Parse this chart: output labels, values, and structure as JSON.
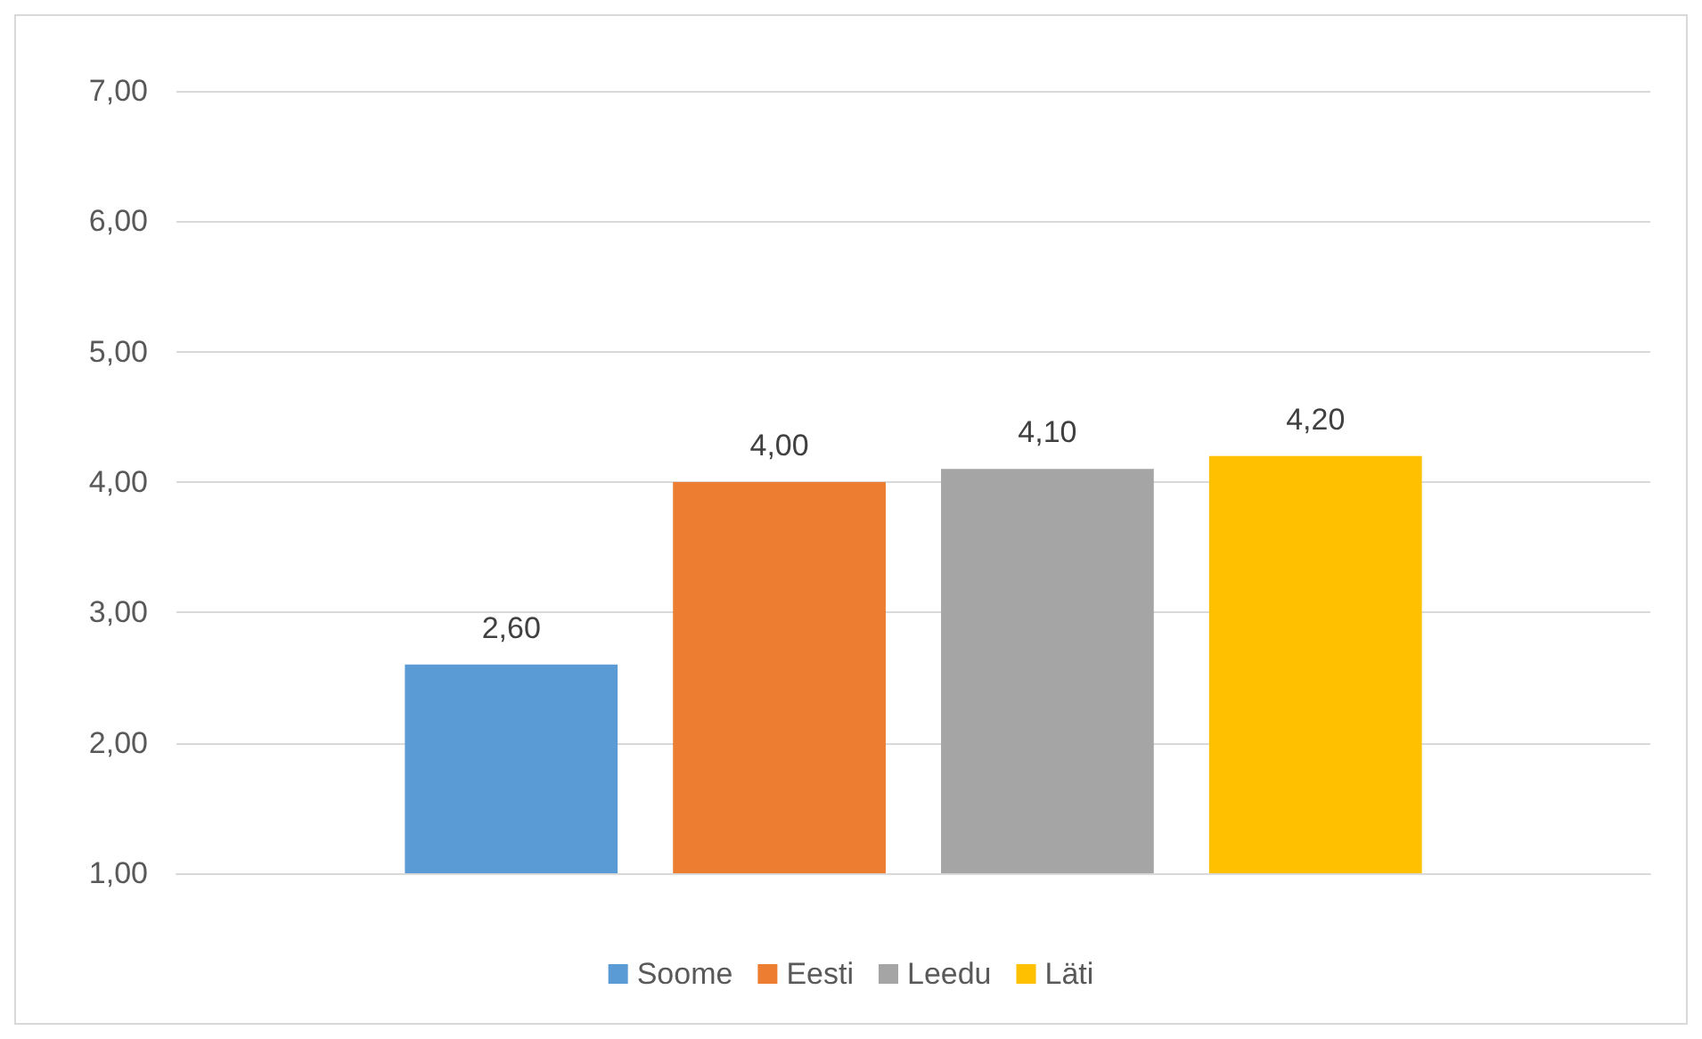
{
  "chart_data": {
    "type": "bar",
    "categories": [
      null
    ],
    "series": [
      {
        "name": "Soome",
        "color": "#5b9bd5",
        "values": [
          2.6
        ],
        "value_labels": [
          "2,60"
        ]
      },
      {
        "name": "Eesti",
        "color": "#ed7d31",
        "values": [
          4.0
        ],
        "value_labels": [
          "4,00"
        ]
      },
      {
        "name": "Leedu",
        "color": "#a5a5a5",
        "values": [
          4.1
        ],
        "value_labels": [
          "4,10"
        ]
      },
      {
        "name": "Läti",
        "color": "#ffc000",
        "values": [
          4.2
        ],
        "value_labels": [
          "4,20"
        ]
      }
    ],
    "ylim": [
      1,
      7
    ],
    "yticks": [
      {
        "value": 1,
        "label": "1,00"
      },
      {
        "value": 2,
        "label": "2,00"
      },
      {
        "value": 3,
        "label": "3,00"
      },
      {
        "value": 4,
        "label": "4,00"
      },
      {
        "value": 5,
        "label": "5,00"
      },
      {
        "value": 6,
        "label": "6,00"
      },
      {
        "value": 7,
        "label": "7,00"
      }
    ],
    "grid": "y",
    "legend": "bottom"
  }
}
